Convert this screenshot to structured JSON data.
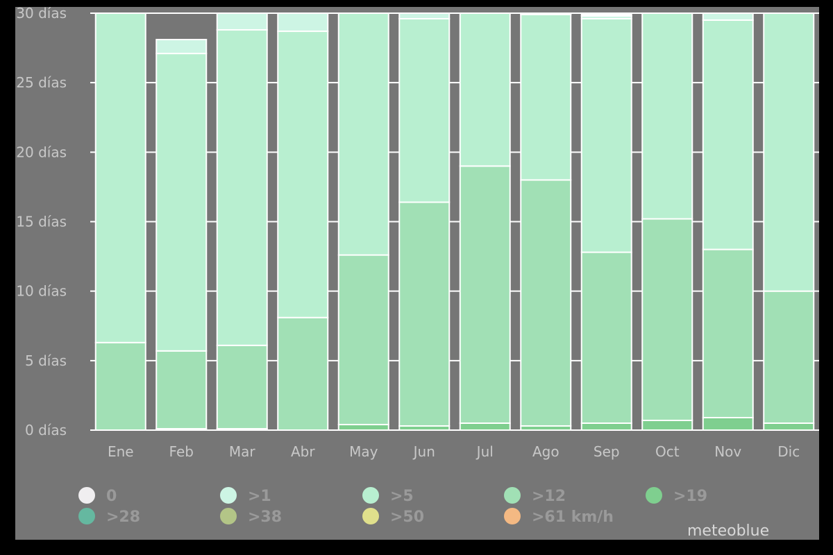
{
  "chart_data": {
    "type": "bar",
    "stacked": true,
    "categories": [
      "Ene",
      "Feb",
      "Mar",
      "Abr",
      "May",
      "Jun",
      "Jul",
      "Ago",
      "Sep",
      "Oct",
      "Nov",
      "Dic"
    ],
    "ylim": [
      0,
      30
    ],
    "yticks": [
      0,
      5,
      10,
      15,
      20,
      25,
      30
    ],
    "ytick_unit": "días",
    "ytick_labels": [
      "0 días",
      "5 días",
      "10 días",
      "15 días",
      "20 días",
      "25 días",
      "30 días"
    ],
    "series": [
      {
        "name": ">61 km/h",
        "color": "#f4b983",
        "values": [
          0,
          0,
          0,
          0,
          0,
          0,
          0,
          0,
          0,
          0,
          0,
          0
        ]
      },
      {
        "name": ">50",
        "color": "#e0e08c",
        "values": [
          0,
          0,
          0,
          0,
          0,
          0,
          0,
          0,
          0,
          0,
          0,
          0
        ]
      },
      {
        "name": ">38",
        "color": "#b3c587",
        "values": [
          0,
          0,
          0,
          0,
          0,
          0,
          0,
          0,
          0,
          0,
          0,
          0
        ]
      },
      {
        "name": ">28",
        "color": "#65b8a0",
        "values": [
          0,
          0,
          0,
          0,
          0,
          0,
          0,
          0,
          0,
          0,
          0,
          0
        ]
      },
      {
        "name": ">19",
        "color": "#7fcf8f",
        "values": [
          0,
          0.1,
          0.1,
          0,
          0.4,
          0.3,
          0.5,
          0.3,
          0.5,
          0.7,
          0.9,
          0.5
        ]
      },
      {
        "name": ">12",
        "color": "#a1e0b5",
        "values": [
          6.3,
          5.6,
          6.0,
          8.1,
          12.2,
          16.1,
          18.5,
          17.7,
          12.3,
          14.5,
          12.1,
          9.5
        ]
      },
      {
        "name": ">5",
        "color": "#b8efd0",
        "values": [
          23.7,
          21.4,
          22.7,
          20.6,
          17.4,
          13.2,
          11.0,
          11.9,
          16.8,
          14.8,
          16.5,
          20.0
        ]
      },
      {
        "name": ">1",
        "color": "#cdf5e4",
        "values": [
          0,
          1.0,
          1.2,
          1.3,
          0,
          0.4,
          0,
          0,
          0.2,
          0,
          0.5,
          0
        ]
      },
      {
        "name": "0",
        "color": "#f0eef0",
        "values": [
          0,
          0,
          0,
          0,
          0,
          0,
          0,
          0.1,
          0.1,
          0,
          0,
          0
        ]
      }
    ],
    "legend": {
      "placement": "bottom",
      "entries": [
        "0",
        ">1",
        ">5",
        ">12",
        ">19",
        ">28",
        ">38",
        ">50",
        ">61 km/h"
      ]
    },
    "grid": true,
    "background": "#767676"
  },
  "brand": "meteoblue"
}
